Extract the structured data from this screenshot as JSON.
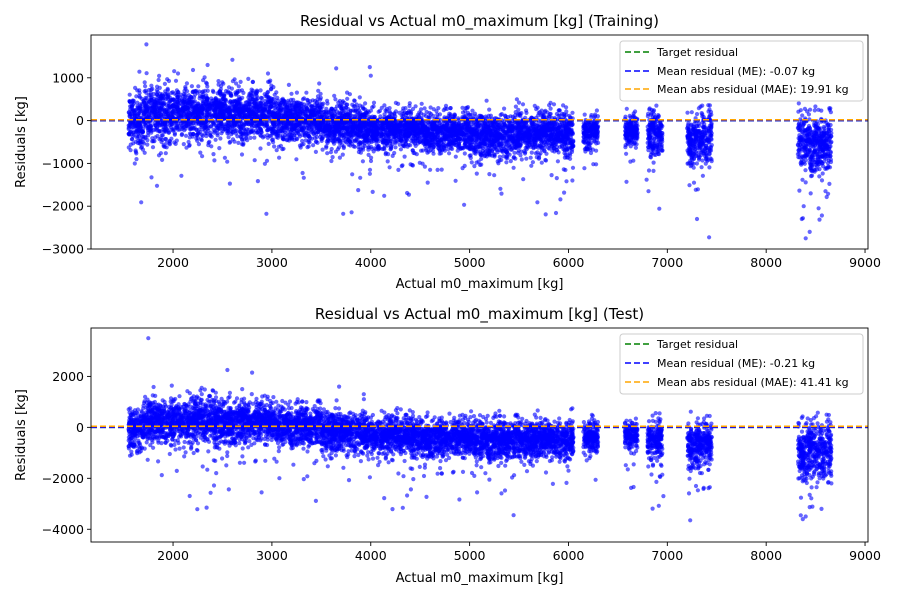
{
  "chart_data": [
    {
      "type": "scatter",
      "title": "Residual vs Actual m0_maximum [kg] (Training)",
      "xlabel": "Actual m0_maximum [kg]",
      "ylabel": "Residuals [kg]",
      "xlim": [
        1170,
        9030
      ],
      "ylim": [
        -3000,
        2000
      ],
      "xticks": [
        2000,
        3000,
        4000,
        5000,
        6000,
        7000,
        8000,
        9000
      ],
      "yticks": [
        -3000,
        -2000,
        -1000,
        0,
        1000
      ],
      "xtick_labels": [
        "2000",
        "3000",
        "4000",
        "5000",
        "6000",
        "7000",
        "8000",
        "9000"
      ],
      "ytick_labels": [
        "−3000",
        "−2000",
        "−1000",
        "0",
        "1000"
      ],
      "grid": false,
      "legend_position": "top-right",
      "colors": {
        "points": "#0000ff",
        "target": "#008000",
        "mean": "#0000ff",
        "mae": "#ffa500"
      },
      "lines": [
        {
          "name": "Target residual",
          "y": 0,
          "color": "#008000"
        },
        {
          "name": "Mean residual (ME): -0.07 kg",
          "y": -0.07,
          "color": "#0000ff"
        },
        {
          "name": "Mean abs residual (MAE): 19.91 kg",
          "y": 19.91,
          "color": "#ffa500"
        }
      ],
      "clusters": [
        [
          1550,
          1700,
          0,
          300
        ],
        [
          1700,
          2000,
          150,
          320
        ],
        [
          2000,
          2500,
          180,
          300
        ],
        [
          2500,
          3000,
          150,
          300
        ],
        [
          3000,
          3500,
          40,
          250
        ],
        [
          3500,
          3950,
          -100,
          250
        ],
        [
          3950,
          4500,
          -200,
          220
        ],
        [
          4500,
          5000,
          -260,
          220
        ],
        [
          5000,
          5500,
          -330,
          250
        ],
        [
          5500,
          6050,
          -280,
          230
        ],
        [
          6150,
          6300,
          -250,
          200
        ],
        [
          6570,
          6700,
          -230,
          180
        ],
        [
          6800,
          6950,
          -320,
          250
        ],
        [
          7200,
          7450,
          -400,
          300
        ],
        [
          8320,
          8660,
          -550,
          320
        ]
      ],
      "outliers": [
        [
          1730,
          1780
        ],
        [
          2350,
          1300
        ],
        [
          2600,
          1420
        ],
        [
          2960,
          1100
        ],
        [
          3650,
          1220
        ],
        [
          3990,
          1250
        ],
        [
          4000,
          1050
        ],
        [
          2050,
          1100
        ],
        [
          5500,
          420
        ],
        [
          5540,
          380
        ],
        [
          6040,
          -1400
        ],
        [
          6810,
          -1650
        ],
        [
          6790,
          -1380
        ],
        [
          7270,
          -1450
        ],
        [
          7300,
          -2300
        ],
        [
          7360,
          -1290
        ],
        [
          8360,
          -2300
        ],
        [
          8400,
          -2750
        ],
        [
          8440,
          -2600
        ],
        [
          8530,
          -2050
        ],
        [
          8600,
          -1650
        ],
        [
          8640,
          -1480
        ],
        [
          8380,
          -2000
        ],
        [
          5200,
          -1250
        ],
        [
          4600,
          -1150
        ],
        [
          3920,
          -950
        ],
        [
          3900,
          -750
        ],
        [
          6950,
          -700
        ],
        [
          8450,
          -1700
        ]
      ]
    },
    {
      "type": "scatter",
      "title": "Residual vs Actual m0_maximum [kg] (Test)",
      "xlabel": "Actual m0_maximum [kg]",
      "ylabel": "Residuals [kg]",
      "xlim": [
        1170,
        9030
      ],
      "ylim": [
        -4500,
        3900
      ],
      "xticks": [
        2000,
        3000,
        4000,
        5000,
        6000,
        7000,
        8000,
        9000
      ],
      "yticks": [
        -4000,
        -2000,
        0,
        2000
      ],
      "xtick_labels": [
        "2000",
        "3000",
        "4000",
        "5000",
        "6000",
        "7000",
        "8000",
        "9000"
      ],
      "ytick_labels": [
        "−4000",
        "−2000",
        "0",
        "2000"
      ],
      "grid": false,
      "legend_position": "top-right",
      "colors": {
        "points": "#0000ff",
        "target": "#008000",
        "mean": "#0000ff",
        "mae": "#ffa500"
      },
      "lines": [
        {
          "name": "Target residual",
          "y": 0,
          "color": "#008000"
        },
        {
          "name": "Mean residual (ME): -0.21 kg",
          "y": -0.21,
          "color": "#0000ff"
        },
        {
          "name": "Mean abs residual (MAE): 41.41 kg",
          "y": 41.41,
          "color": "#ffa500"
        }
      ],
      "clusters": [
        [
          1550,
          1700,
          0,
          380
        ],
        [
          1700,
          2000,
          250,
          420
        ],
        [
          2000,
          2500,
          280,
          420
        ],
        [
          2500,
          3000,
          230,
          400
        ],
        [
          3000,
          3500,
          60,
          380
        ],
        [
          3500,
          3950,
          -150,
          380
        ],
        [
          3950,
          4500,
          -300,
          350
        ],
        [
          4500,
          5000,
          -400,
          350
        ],
        [
          5000,
          5500,
          -500,
          380
        ],
        [
          5500,
          6050,
          -450,
          350
        ],
        [
          6150,
          6300,
          -350,
          280
        ],
        [
          6570,
          6700,
          -300,
          250
        ],
        [
          6800,
          6950,
          -500,
          380
        ],
        [
          7200,
          7450,
          -650,
          450
        ],
        [
          8320,
          8660,
          -900,
          550
        ]
      ],
      "outliers": [
        [
          1750,
          3500
        ],
        [
          2550,
          2250
        ],
        [
          2700,
          1500
        ],
        [
          2800,
          2150
        ],
        [
          2400,
          1450
        ],
        [
          3680,
          1600
        ],
        [
          3930,
          1300
        ],
        [
          5200,
          -2050
        ],
        [
          5160,
          -1800
        ],
        [
          6000,
          -1700
        ],
        [
          6040,
          750
        ],
        [
          6600,
          -1650
        ],
        [
          6960,
          -2700
        ],
        [
          6840,
          -1850
        ],
        [
          7290,
          -2300
        ],
        [
          7430,
          -2350
        ],
        [
          7350,
          -1800
        ],
        [
          8350,
          -3450
        ],
        [
          8370,
          -3600
        ],
        [
          8400,
          -3500
        ],
        [
          8440,
          -2650
        ],
        [
          8510,
          -2350
        ],
        [
          8560,
          -3200
        ],
        [
          8630,
          -2150
        ],
        [
          8660,
          -2200
        ],
        [
          8540,
          -2000
        ],
        [
          5300,
          650
        ],
        [
          4600,
          -1050
        ]
      ]
    }
  ]
}
